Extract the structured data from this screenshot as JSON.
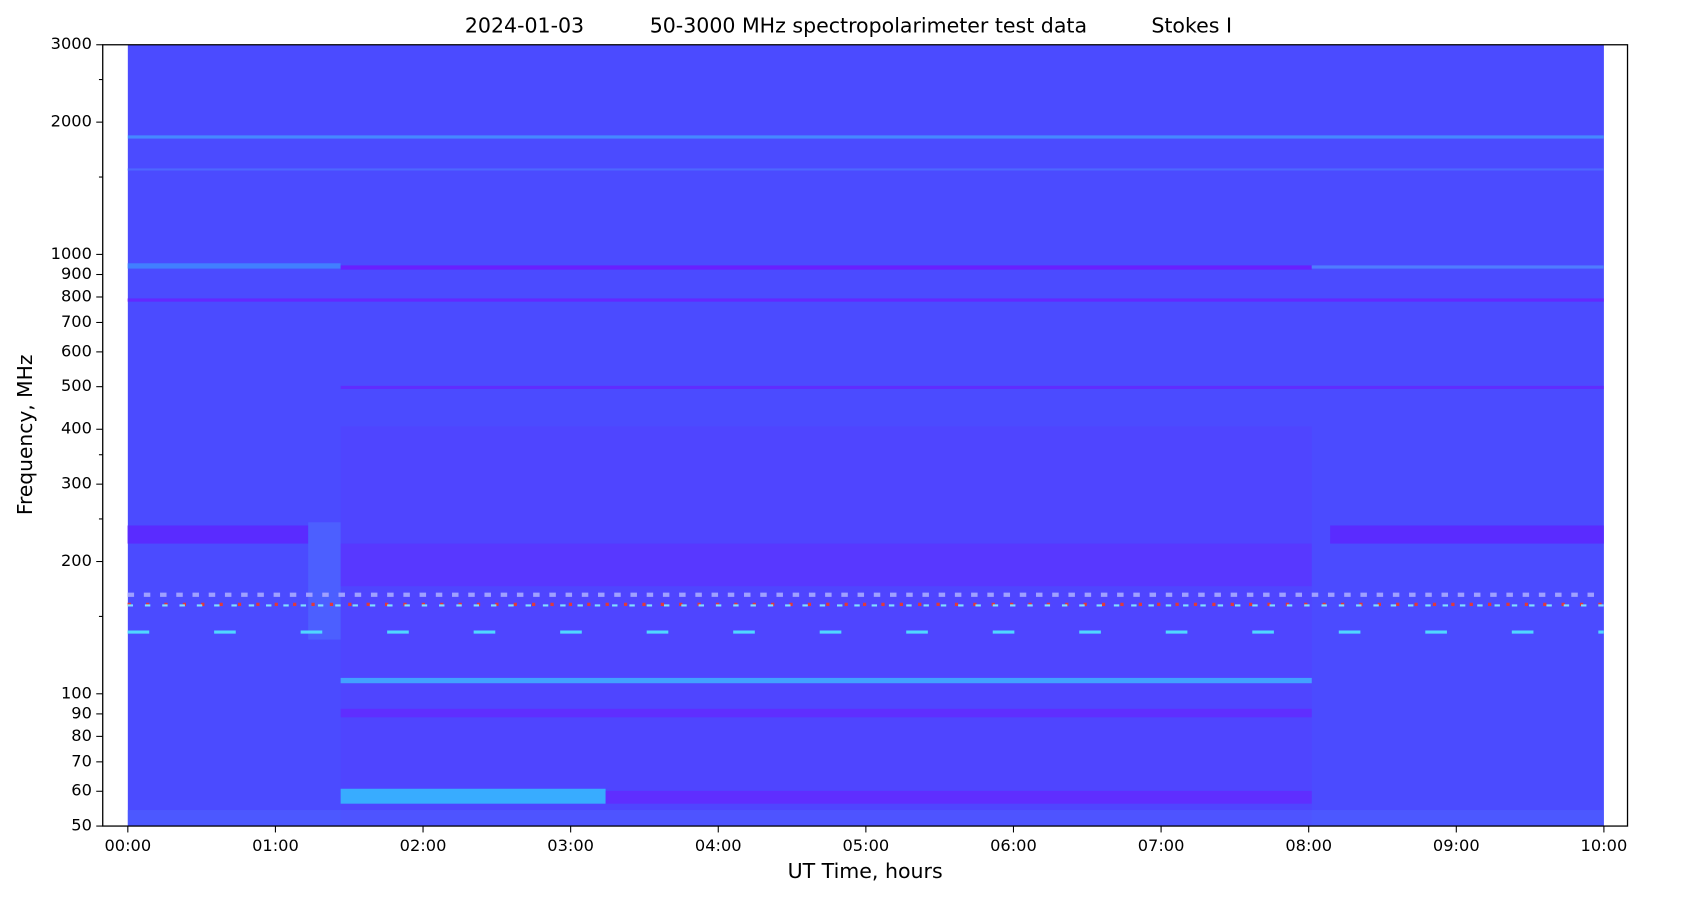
{
  "chart_data": {
    "type": "spectrogram",
    "title_parts": [
      "2024-01-03",
      "50-3000 MHz spectropolarimeter test data",
      "Stokes I"
    ],
    "xlabel": "UT Time, hours",
    "ylabel": "Frequency, MHz",
    "xlim": [
      -0.17,
      10.16
    ],
    "xticks": [
      {
        "value": 0,
        "label": "00:00"
      },
      {
        "value": 1,
        "label": "01:00"
      },
      {
        "value": 2,
        "label": "02:00"
      },
      {
        "value": 3,
        "label": "03:00"
      },
      {
        "value": 4,
        "label": "04:00"
      },
      {
        "value": 5,
        "label": "05:00"
      },
      {
        "value": 6,
        "label": "06:00"
      },
      {
        "value": 7,
        "label": "07:00"
      },
      {
        "value": 8,
        "label": "08:00"
      },
      {
        "value": 9,
        "label": "09:00"
      },
      {
        "value": 10,
        "label": "10:00"
      }
    ],
    "ylim": [
      50,
      3000
    ],
    "yscale": "log",
    "yticks": [
      50,
      60,
      70,
      80,
      90,
      100,
      200,
      300,
      400,
      500,
      600,
      700,
      800,
      900,
      1000,
      2000,
      3000
    ],
    "yminorticks": [
      150,
      250,
      350,
      1500,
      2500
    ],
    "data_extent_x": [
      0,
      10
    ],
    "color": "#4b4bff"
  }
}
